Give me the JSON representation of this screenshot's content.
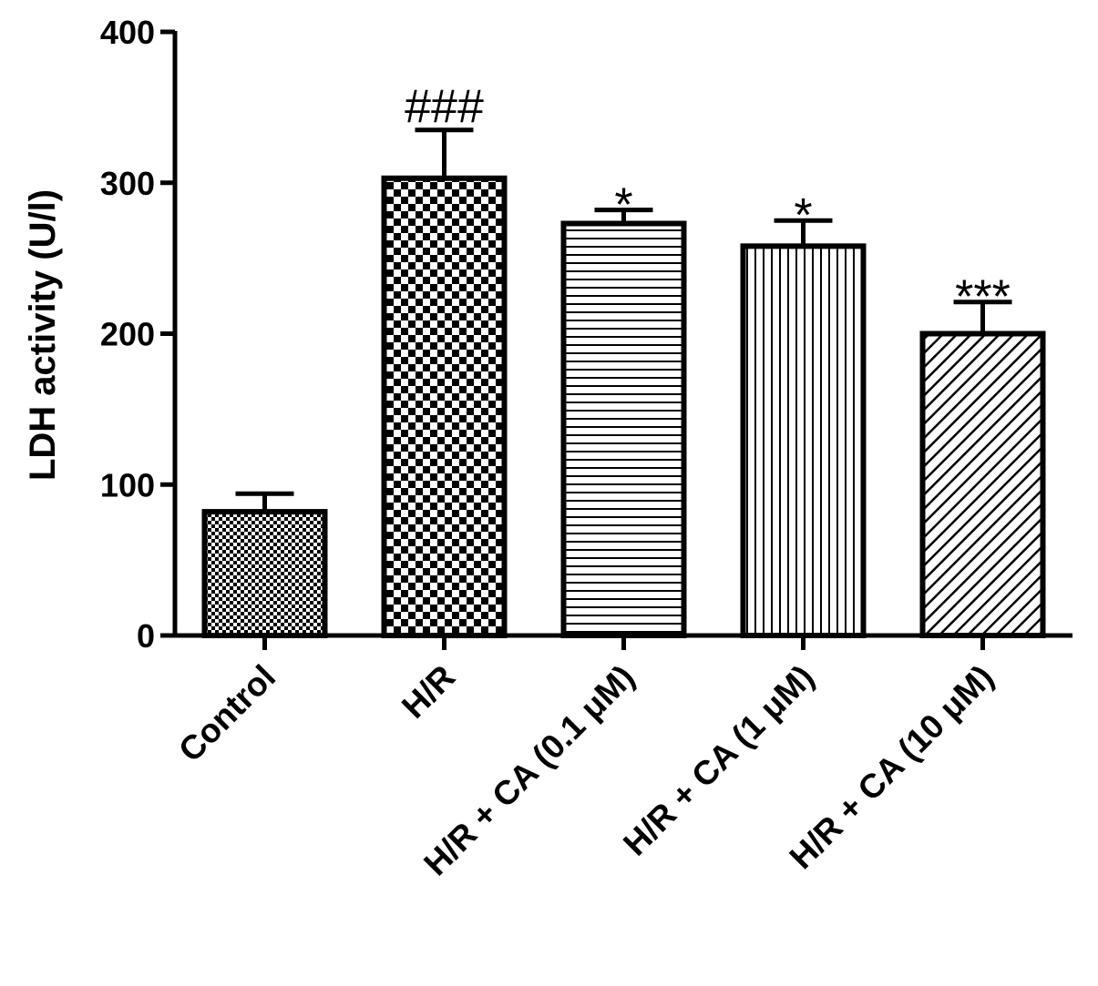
{
  "chart_data": {
    "type": "bar",
    "categories": [
      "Control",
      "H/R",
      "H/R + CA (0.1 μM)",
      "H/R + CA (1 μM)",
      "H/R + CA (10 μM)"
    ],
    "values": [
      82,
      303,
      273,
      258,
      200
    ],
    "error_upper": [
      94,
      335,
      282,
      275,
      221
    ],
    "annotations": [
      "",
      "###",
      "*",
      "*",
      "***"
    ],
    "patterns": [
      "fine-checker",
      "coarse-checker",
      "horizontal-lines",
      "vertical-lines",
      "diagonal-lines"
    ],
    "ylabel": "LDH activity (U/l)",
    "xlabel": "",
    "ylim": [
      0,
      400
    ],
    "yticks": [
      "0",
      "100",
      "200",
      "300",
      "400"
    ],
    "grid": false,
    "legend": "none",
    "colors": {
      "fill": "#ffffff",
      "stroke": "#000000"
    }
  }
}
